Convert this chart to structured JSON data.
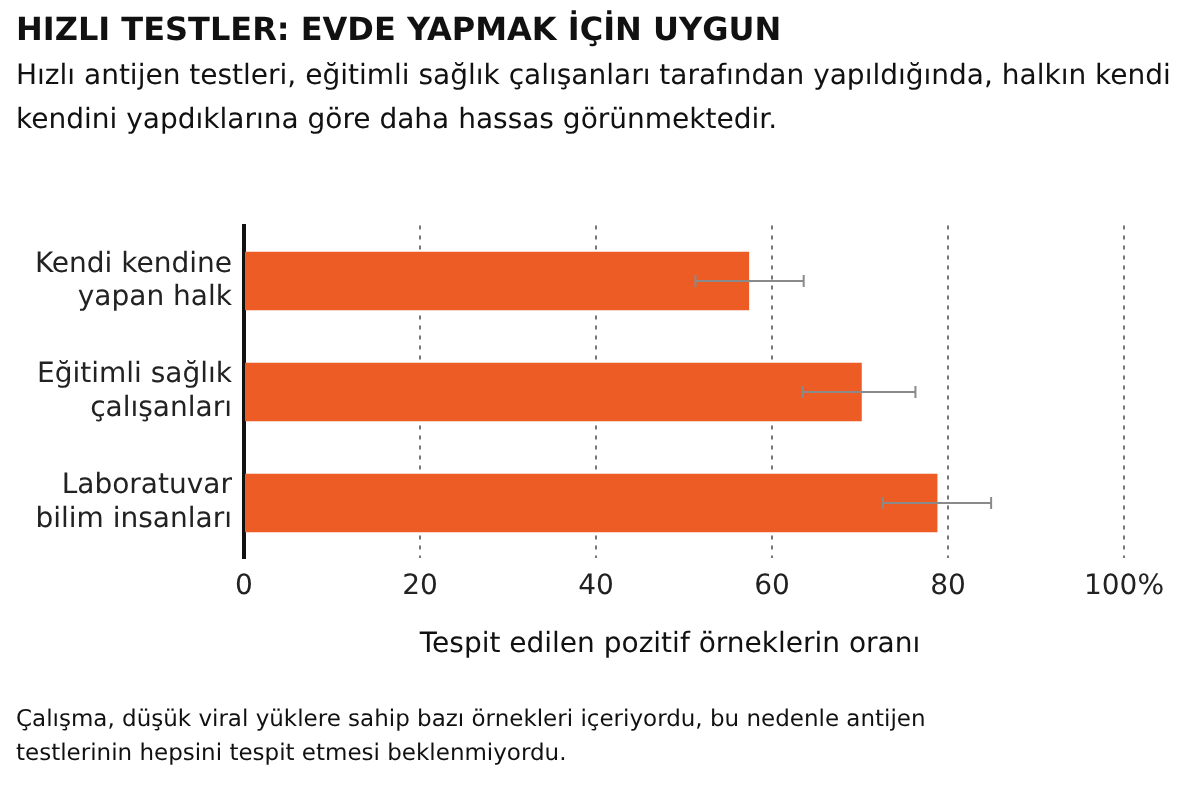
{
  "chart_data": {
    "type": "bar",
    "orientation": "horizontal",
    "title": "HIZLI TESTLER: EVDE YAPMAK İÇİN UYGUN",
    "subtitle": "Hızlı antijen testleri, eğitimli sağlık çalışanları tarafından yapıldığında, halkın kendi kendini yapdıklarına göre daha hassas görünmektedir.",
    "xlabel": "Tespit edilen pozitif örneklerin oranı",
    "categories": [
      "Kendi kendine yapan halk",
      "Eğitimli sağlık çalışanları",
      "Laboratuvar bilim insanları"
    ],
    "values": [
      57.4,
      70.2,
      78.8
    ],
    "color": "#ec5c24",
    "errors": [
      [
        51.3,
        63.6
      ],
      [
        63.5,
        76.3
      ],
      [
        72.6,
        84.9
      ]
    ],
    "xlim": [
      0,
      100
    ],
    "xticks": [
      0,
      20,
      40,
      60,
      80,
      {
        "value": 100,
        "label": "100%"
      }
    ],
    "grid": "x",
    "legend": false,
    "annotations": [
      "Çalışma, düşük viral yüklere sahip bazı örnekleri içeriyordu, bu nedenle antijen testlerinin hepsini tespit etmesi beklenmiyordu."
    ]
  }
}
